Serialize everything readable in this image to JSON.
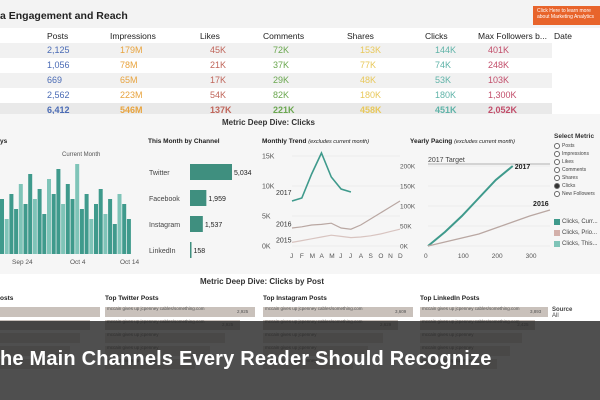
{
  "header": {
    "title": "a Engagement and Reach",
    "cta_label": "Click Here to learn more about Marketing Analytics"
  },
  "summary": {
    "columns": [
      "Posts",
      "Impressions",
      "Likes",
      "Comments",
      "Shares",
      "Clicks",
      "Max Followers b...",
      "Date"
    ],
    "column_colors": [
      "#4a6bb5",
      "#e8a33d",
      "#c0655a",
      "#6aa74f",
      "#e8c85a",
      "#5fb3a8",
      "#c24d6a"
    ],
    "rows": [
      [
        "2,125",
        "179M",
        "45K",
        "72K",
        "153K",
        "144K",
        "401K"
      ],
      [
        "1,056",
        "78M",
        "21K",
        "37K",
        "77K",
        "74K",
        "248K"
      ],
      [
        "669",
        "65M",
        "17K",
        "29K",
        "48K",
        "53K",
        "103K"
      ],
      [
        "2,562",
        "223M",
        "54K",
        "82K",
        "180K",
        "180K",
        "1,300K"
      ],
      [
        "6,412",
        "546M",
        "137K",
        "221K",
        "458K",
        "451K",
        "2,052K"
      ]
    ]
  },
  "deep_dive": {
    "title": "Metric Deep Dive: Clicks",
    "left_title": "ys",
    "current_month_label": "Current Month",
    "left_xticks": [
      "Sep 24",
      "Oct 4",
      "Oct 14"
    ],
    "left_bars": [
      0.55,
      0.35,
      0.6,
      0.45,
      0.7,
      0.5,
      0.8,
      0.55,
      0.65,
      0.4,
      0.75,
      0.6,
      0.85,
      0.5,
      0.7,
      0.55,
      0.9,
      0.45,
      0.6,
      0.35,
      0.5,
      0.65,
      0.4,
      0.55,
      0.3,
      0.6,
      0.5,
      0.35
    ],
    "channel_title": "This Month by Channel",
    "channels": [
      {
        "name": "Twitter",
        "value": 5034,
        "label": "5,034"
      },
      {
        "name": "Facebook",
        "value": 1959,
        "label": "1,959"
      },
      {
        "name": "Instagram",
        "value": 1537,
        "label": "1,537"
      },
      {
        "name": "LinkedIn",
        "value": 158,
        "label": "158"
      }
    ],
    "monthly_title": "Monthly Trend",
    "monthly_note": "(excludes current month)",
    "monthly_yticks": [
      "15K",
      "10K",
      "5K",
      "0K"
    ],
    "monthly_xticks": [
      "J",
      "F",
      "M",
      "A",
      "M",
      "J",
      "J",
      "A",
      "S",
      "O",
      "N",
      "D"
    ],
    "monthly_series_labels": [
      "2017",
      "2016",
      "2015"
    ],
    "yearly_title": "Yearly Pacing",
    "yearly_note": "(excludes current month)",
    "yearly_yticks": [
      "200K",
      "150K",
      "100K",
      "50K",
      "0K"
    ],
    "yearly_xticks": [
      "0",
      "100",
      "200",
      "300"
    ],
    "target_label": "2017 Target",
    "yearly_series_labels": [
      "2017",
      "2016"
    ]
  },
  "metric_selector": {
    "title": "Select Metric",
    "options": [
      "Posts",
      "Impressions",
      "Likes",
      "Comments",
      "Shares",
      "Clicks",
      "New Followers"
    ],
    "selected": "Clicks",
    "legend": [
      {
        "label": "Clicks, Curr...",
        "color": "#3f9a8c"
      },
      {
        "label": "Clicks, Prio...",
        "color": "#d3b0aa"
      },
      {
        "label": "Clicks, This...",
        "color": "#7fc4b8"
      }
    ]
  },
  "by_post": {
    "title": "Metric Deep Dive: Clicks by Post",
    "columns": [
      {
        "title": "osts",
        "rows": [
          "",
          "",
          "",
          "",
          ""
        ]
      },
      {
        "title": "Top Twitter Posts",
        "rows": [
          "mccain gives up jcpenney cables/something.com",
          "mccain gives up jcpenney cables/something.com",
          "mccain gives up jcpenney",
          "mccain gives up jcpenney",
          "mccain gives up jcpenney"
        ],
        "nums": [
          "2,925",
          "2,925",
          "",
          "",
          ""
        ]
      },
      {
        "title": "Top Instagram Posts",
        "rows": [
          "mccain gives up jcpenney cables/something.com",
          "mccain gives up jcpenney cables/something.com",
          "mccain gives up jcpenney",
          "mccain gives up jcpenney",
          "mccain gives up jcpenney"
        ],
        "nums": [
          "3,609",
          "2,629",
          "",
          "",
          ""
        ]
      },
      {
        "title": "Top LinkedIn Posts",
        "rows": [
          "mccain gives up jcpenney cables/something.com",
          "mccain gives up jcpenney cables/something.com",
          "mccain gives up jcpenney",
          "mccain gives up jcpenney",
          "mccain gives up jcpenney"
        ],
        "nums": [
          "3,893",
          "2,425",
          "",
          "",
          ""
        ]
      }
    ],
    "source_label": "Source",
    "source_value": "All"
  },
  "banner": {
    "text": "he Main Channels Every Reader Should Recognize"
  },
  "chart_data": [
    {
      "type": "bar",
      "title": "This Month by Channel",
      "categories": [
        "Twitter",
        "Facebook",
        "Instagram",
        "LinkedIn"
      ],
      "values": [
        5034,
        1959,
        1537,
        158
      ]
    },
    {
      "type": "line",
      "title": "Monthly Trend",
      "categories": [
        "J",
        "F",
        "M",
        "A",
        "M",
        "J",
        "J",
        "A",
        "S",
        "O",
        "N",
        "D"
      ],
      "series": [
        {
          "name": "2017",
          "values": [
            7500,
            8000,
            12000,
            15500,
            11500,
            9500,
            9000,
            null,
            null,
            null,
            null,
            null
          ]
        },
        {
          "name": "2016",
          "values": [
            3000,
            3200,
            3500,
            3600,
            3800,
            3000,
            2800,
            3500,
            4500,
            5500,
            6500,
            7500
          ]
        },
        {
          "name": "2015",
          "values": [
            600,
            900,
            1200,
            1500,
            1800,
            1600,
            1400,
            1500,
            1700,
            2000,
            2400,
            2800
          ]
        }
      ],
      "ylim": [
        0,
        15000
      ]
    },
    {
      "type": "line",
      "title": "Yearly Pacing",
      "x": [
        0,
        50,
        100,
        150,
        200,
        250,
        300,
        360
      ],
      "series": [
        {
          "name": "2017",
          "values": [
            0,
            35000,
            75000,
            120000,
            165000,
            200000,
            null,
            null
          ]
        },
        {
          "name": "2016",
          "values": [
            0,
            10000,
            20000,
            30000,
            45000,
            60000,
            75000,
            90000
          ]
        }
      ],
      "ylim": [
        0,
        220000
      ]
    }
  ]
}
